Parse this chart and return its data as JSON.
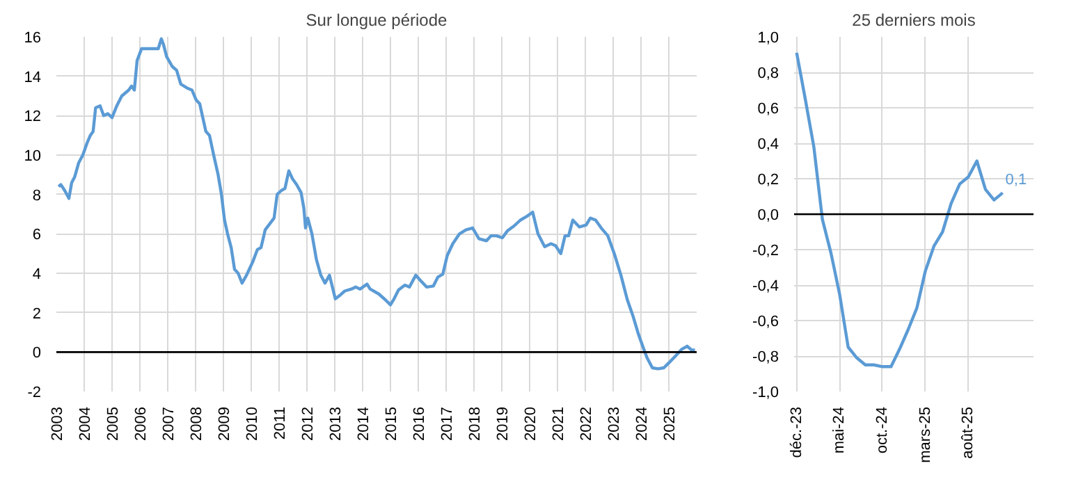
{
  "chart_data": [
    {
      "type": "line",
      "title": "Sur longue période",
      "x": [
        2003.08,
        2003.16,
        2003.3,
        2003.45,
        2003.55,
        2003.66,
        2003.8,
        2003.95,
        2004.1,
        2004.22,
        2004.32,
        2004.41,
        2004.57,
        2004.7,
        2004.85,
        2005.0,
        2005.17,
        2005.35,
        2005.6,
        2005.7,
        2005.8,
        2005.9,
        2006.06,
        2006.3,
        2006.53,
        2006.66,
        2006.77,
        2006.85,
        2006.96,
        2007.16,
        2007.32,
        2007.47,
        2007.7,
        2007.87,
        2008.02,
        2008.15,
        2008.26,
        2008.37,
        2008.5,
        2008.65,
        2008.81,
        2008.93,
        2009.04,
        2009.15,
        2009.28,
        2009.4,
        2009.53,
        2009.67,
        2009.83,
        2010.06,
        2010.22,
        2010.35,
        2010.5,
        2010.66,
        2010.82,
        2010.93,
        2011.08,
        2011.21,
        2011.35,
        2011.48,
        2011.63,
        2011.79,
        2011.89,
        2011.95,
        2012.03,
        2012.18,
        2012.34,
        2012.5,
        2012.65,
        2012.81,
        2013.02,
        2013.2,
        2013.36,
        2013.6,
        2013.75,
        2013.91,
        2014.16,
        2014.27,
        2014.58,
        2014.82,
        2015.0,
        2015.13,
        2015.29,
        2015.52,
        2015.68,
        2015.91,
        2016.07,
        2016.3,
        2016.54,
        2016.7,
        2016.88,
        2017.04,
        2017.24,
        2017.48,
        2017.71,
        2017.95,
        2018.18,
        2018.45,
        2018.61,
        2018.81,
        2019.02,
        2019.2,
        2019.44,
        2019.67,
        2019.91,
        2020.11,
        2020.3,
        2020.54,
        2020.77,
        2020.93,
        2021.12,
        2021.27,
        2021.4,
        2021.55,
        2021.79,
        2022.03,
        2022.18,
        2022.37,
        2022.57,
        2022.81,
        2023.04,
        2023.28,
        2023.51,
        2023.72,
        2023.91,
        2024.06,
        2024.22,
        2024.41,
        2024.61,
        2024.82,
        2025.0,
        2025.24,
        2025.47,
        2025.66,
        2025.82,
        2025.94
      ],
      "series": [
        {
          "color": "#5b9bd5",
          "values": [
            8.4,
            8.5,
            8.2,
            7.8,
            8.6,
            8.9,
            9.6,
            10.0,
            10.6,
            11.0,
            11.2,
            12.4,
            12.5,
            12.0,
            12.1,
            11.9,
            12.5,
            13.0,
            13.3,
            13.5,
            13.3,
            14.8,
            15.4,
            15.4,
            15.4,
            15.4,
            15.9,
            15.6,
            15.0,
            14.5,
            14.3,
            13.6,
            13.4,
            13.3,
            12.8,
            12.6,
            11.9,
            11.2,
            11.0,
            10.0,
            9.0,
            8.0,
            6.7,
            6.0,
            5.3,
            4.2,
            4.0,
            3.5,
            3.9,
            4.6,
            5.2,
            5.3,
            6.2,
            6.5,
            6.8,
            8.0,
            8.2,
            8.3,
            9.2,
            8.8,
            8.5,
            8.1,
            7.3,
            6.3,
            6.8,
            6.0,
            4.7,
            3.9,
            3.5,
            3.9,
            2.7,
            2.9,
            3.1,
            3.2,
            3.3,
            3.2,
            3.45,
            3.2,
            2.95,
            2.65,
            2.4,
            2.7,
            3.15,
            3.4,
            3.3,
            3.9,
            3.65,
            3.3,
            3.35,
            3.8,
            3.95,
            4.9,
            5.5,
            6.0,
            6.2,
            6.3,
            5.75,
            5.65,
            5.9,
            5.9,
            5.8,
            6.15,
            6.4,
            6.7,
            6.9,
            7.1,
            6.0,
            5.35,
            5.5,
            5.4,
            5.0,
            5.9,
            5.9,
            6.7,
            6.35,
            6.45,
            6.8,
            6.7,
            6.3,
            5.9,
            5.0,
            3.9,
            2.65,
            1.8,
            0.9,
            0.3,
            -0.3,
            -0.8,
            -0.85,
            -0.8,
            -0.55,
            -0.2,
            0.15,
            0.3,
            0.1,
            0.1
          ]
        }
      ],
      "xlim": [
        2003,
        2026
      ],
      "xticks": [
        2003,
        2004,
        2005,
        2006,
        2007,
        2008,
        2009,
        2010,
        2011,
        2012,
        2013,
        2014,
        2015,
        2016,
        2017,
        2018,
        2019,
        2020,
        2021,
        2022,
        2023,
        2024,
        2025
      ],
      "ylim": [
        -2,
        16
      ],
      "yticks": [
        -2,
        0,
        2,
        4,
        6,
        8,
        10,
        12,
        14,
        16
      ],
      "ref_lines": [
        {
          "axis": "y",
          "value": 0,
          "color": "#000000"
        }
      ],
      "grid": true,
      "marker": "none",
      "line_style": "solid"
    },
    {
      "type": "line",
      "title": "25 derniers mois",
      "categories": [
        "déc.-23",
        null,
        null,
        null,
        null,
        "mai-24",
        null,
        null,
        null,
        null,
        "oct.-24",
        null,
        null,
        null,
        null,
        "mars-25",
        null,
        null,
        null,
        null,
        "août-25",
        null,
        null,
        null,
        null
      ],
      "series": [
        {
          "color": "#5b9bd5",
          "values": [
            0.91,
            0.65,
            0.38,
            -0.03,
            -0.22,
            -0.45,
            -0.75,
            -0.81,
            -0.85,
            -0.85,
            -0.86,
            -0.86,
            -0.76,
            -0.65,
            -0.53,
            -0.32,
            -0.18,
            -0.1,
            0.06,
            0.17,
            0.21,
            0.3,
            0.14,
            0.08,
            0.12
          ],
          "value_labels": [
            null,
            null,
            null,
            null,
            null,
            null,
            null,
            null,
            null,
            null,
            null,
            null,
            null,
            null,
            null,
            null,
            null,
            null,
            null,
            null,
            null,
            null,
            null,
            null,
            "0,1"
          ]
        }
      ],
      "ylim": [
        -1,
        1
      ],
      "yticks": [
        {
          "value": -1,
          "label": "-1,0"
        },
        {
          "value": -0.8,
          "label": "-0,8"
        },
        {
          "value": -0.6,
          "label": "-0,6"
        },
        {
          "value": -0.4,
          "label": "-0,4"
        },
        {
          "value": -0.2,
          "label": "-0,2"
        },
        {
          "value": 0,
          "label": "0,0"
        },
        {
          "value": 0.2,
          "label": "0,2"
        },
        {
          "value": 0.4,
          "label": "0,4"
        },
        {
          "value": 0.6,
          "label": "0,6"
        },
        {
          "value": 0.8,
          "label": "0,8"
        },
        {
          "value": 1,
          "label": "1,0"
        }
      ],
      "ref_lines": [
        {
          "axis": "y",
          "value": 0,
          "color": "#000000"
        }
      ],
      "grid": true,
      "marker": "none",
      "line_style": "solid"
    }
  ]
}
